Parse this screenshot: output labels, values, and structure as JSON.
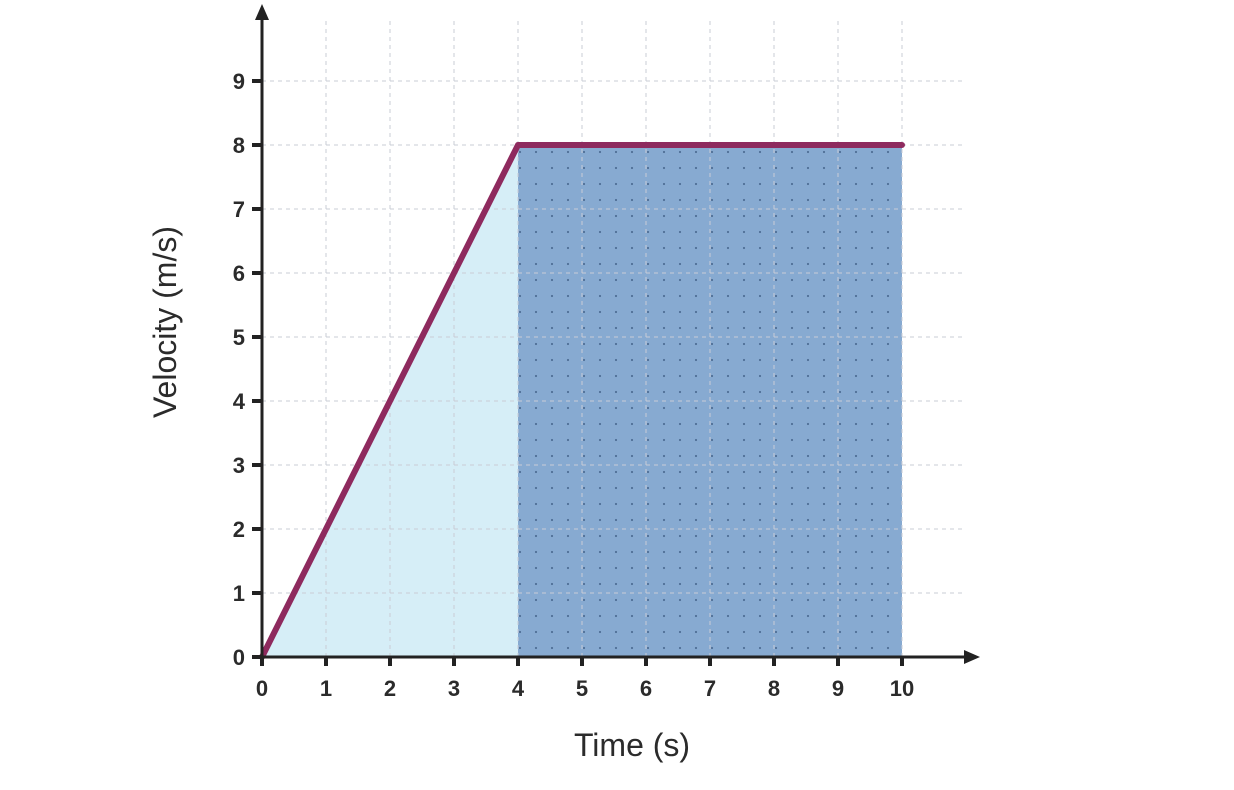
{
  "chart_data": {
    "type": "line",
    "title": "",
    "xlabel": "Time (s)",
    "ylabel": "Velocity (m/s)",
    "xlim": [
      0,
      10
    ],
    "ylim": [
      0,
      9
    ],
    "x_ticks": [
      "0",
      "1",
      "2",
      "3",
      "4",
      "5",
      "6",
      "7",
      "8",
      "9",
      "10"
    ],
    "y_ticks": [
      "0",
      "1",
      "2",
      "3",
      "4",
      "5",
      "6",
      "7",
      "8",
      "9"
    ],
    "grid": true,
    "grid_style": "dashed",
    "series": [
      {
        "x": [
          0,
          4,
          10
        ],
        "y": [
          0,
          8,
          8
        ],
        "color": "#8e2a5e"
      }
    ],
    "shaded_regions": [
      {
        "shape": "triangle",
        "x": [
          0,
          4
        ],
        "y": [
          0,
          8
        ],
        "color": "#d6eef7"
      },
      {
        "shape": "rectangle",
        "x": [
          4,
          10
        ],
        "y": [
          0,
          8
        ],
        "color": "#87aad1",
        "pattern": "dots"
      }
    ],
    "colors": {
      "axis": "#222222",
      "grid": "#c9ccd6",
      "line": "#8e2a5e",
      "triangle_fill": "#d6eef7",
      "rectangle_fill": "#87aad1",
      "dots": "#4f6f96"
    }
  }
}
